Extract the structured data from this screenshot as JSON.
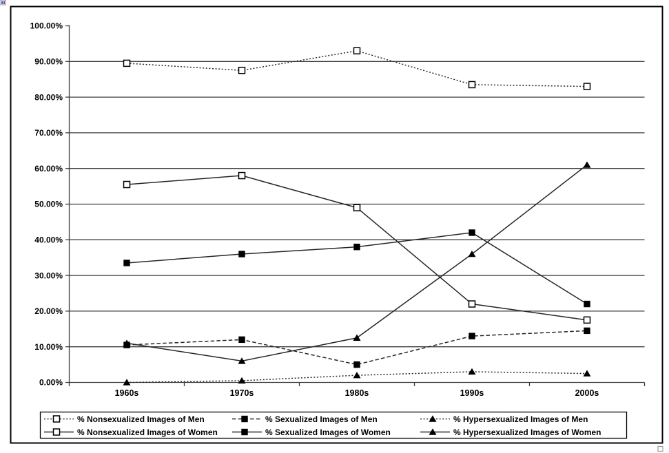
{
  "chart_data": {
    "type": "line",
    "title": "",
    "xlabel": "",
    "ylabel": "",
    "categories": [
      "1960s",
      "1970s",
      "1980s",
      "1990s",
      "2000s"
    ],
    "series": [
      {
        "name": "% Nonsexualized Images of Men",
        "values": [
          89.5,
          87.5,
          93,
          83.5,
          83
        ],
        "line_style": "dotted",
        "marker": "square-open"
      },
      {
        "name": "% Sexualized Images of Men",
        "values": [
          10.5,
          12,
          5,
          13,
          14.5
        ],
        "line_style": "dashed",
        "marker": "square-filled"
      },
      {
        "name": "% Hypersexualized Images of Men",
        "values": [
          0,
          0.5,
          2,
          3,
          2.5
        ],
        "line_style": "dotted",
        "marker": "triangle-filled"
      },
      {
        "name": "% Nonsexualized Images of Women",
        "values": [
          55.5,
          58,
          49,
          22,
          17.5
        ],
        "line_style": "solid",
        "marker": "square-open"
      },
      {
        "name": "% Sexualized Images of Women",
        "values": [
          33.5,
          36,
          38,
          42,
          22
        ],
        "line_style": "solid",
        "marker": "square-filled"
      },
      {
        "name": "% Hypersexualized Images of Women",
        "values": [
          11,
          6,
          12.5,
          36,
          61
        ],
        "line_style": "solid",
        "marker": "triangle-filled"
      }
    ],
    "y_axis": {
      "min": 0,
      "max": 100,
      "step": 10,
      "tick_labels": [
        "0.00%",
        "10.00%",
        "20.00%",
        "30.00%",
        "40.00%",
        "50.00%",
        "60.00%",
        "70.00%",
        "80.00%",
        "90.00%",
        "100.00%"
      ]
    },
    "grid": true,
    "gridlines_at": [
      10,
      20,
      30,
      40,
      50,
      60,
      70,
      80,
      90
    ],
    "legend_position": "bottom",
    "legend_rows": 2,
    "legend_columns": 3,
    "colors": {
      "series_line": "#262626",
      "marker_fill": "#000000",
      "grid_line": "#3d3d3d",
      "axis_line": "#3d3d3d",
      "text": "#000000",
      "background": "#ffffff",
      "chart_border": "#000000",
      "legend_border": "#000000",
      "handle": "#9c9c9c",
      "anchor_icon_blue": "#3a5db5",
      "anchor_icon_red": "#b53a3a"
    }
  }
}
